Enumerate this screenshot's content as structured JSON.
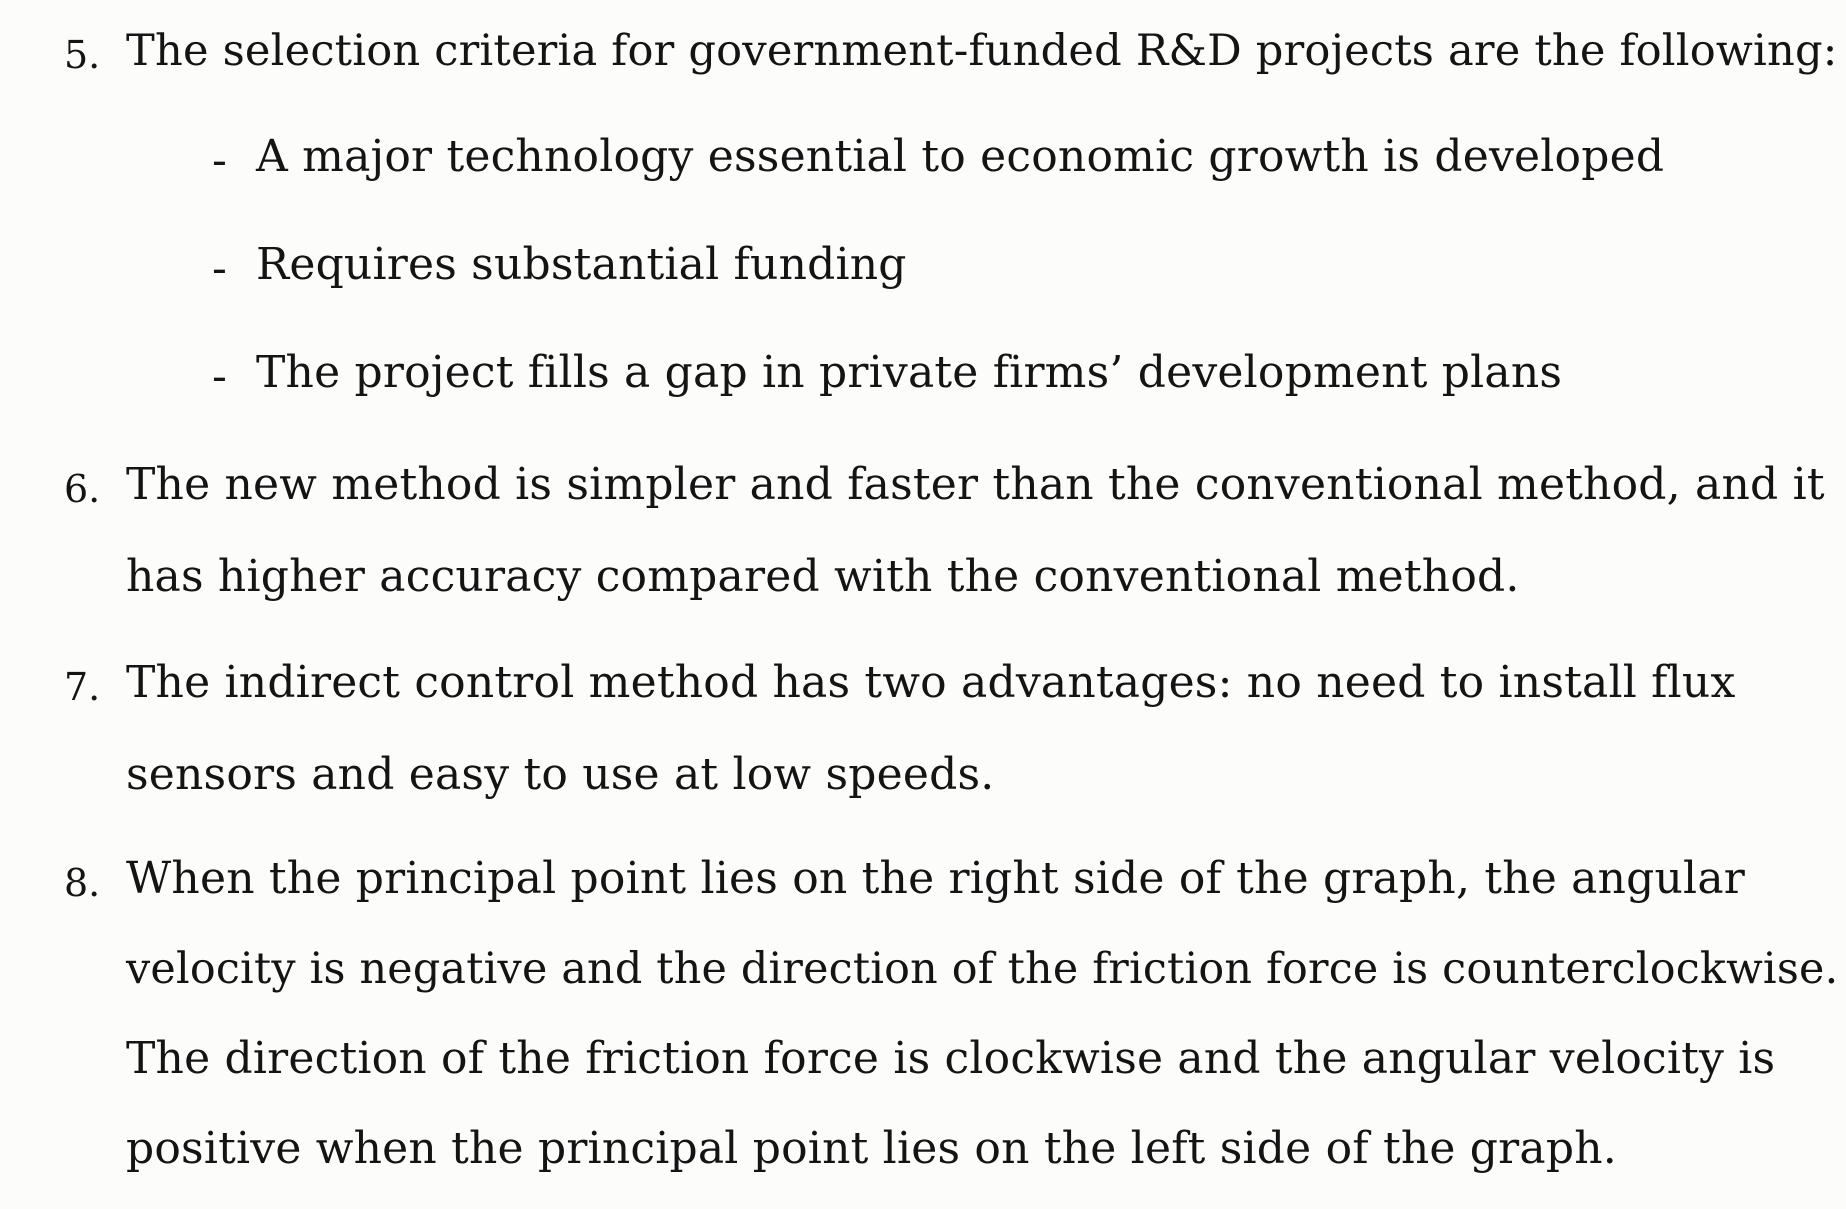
{
  "items": [
    {
      "number": "5.",
      "lines": [
        "The selection criteria for government-funded R&D projects are the following:"
      ],
      "bullets": [
        "A major technology essential to economic growth is developed",
        "Requires substantial funding",
        "The project fills a gap in private firms’ development plans"
      ]
    },
    {
      "number": "6.",
      "lines": [
        "The new method is simpler and faster than the conventional method, and it",
        "has higher accuracy compared with the conventional method."
      ]
    },
    {
      "number": "7.",
      "lines": [
        "The indirect control method has two advantages: no need to install flux",
        "sensors and easy to use at low speeds."
      ]
    },
    {
      "number": "8.",
      "lines": [
        "When the principal point lies on the right side of the graph, the angular",
        "velocity is negative and the direction of the friction force is counterclockwise.",
        "The direction of the friction force is clockwise and the angular velocity is",
        "positive when the principal point lies on the left side of the graph."
      ]
    }
  ],
  "bullet_marker": "-"
}
